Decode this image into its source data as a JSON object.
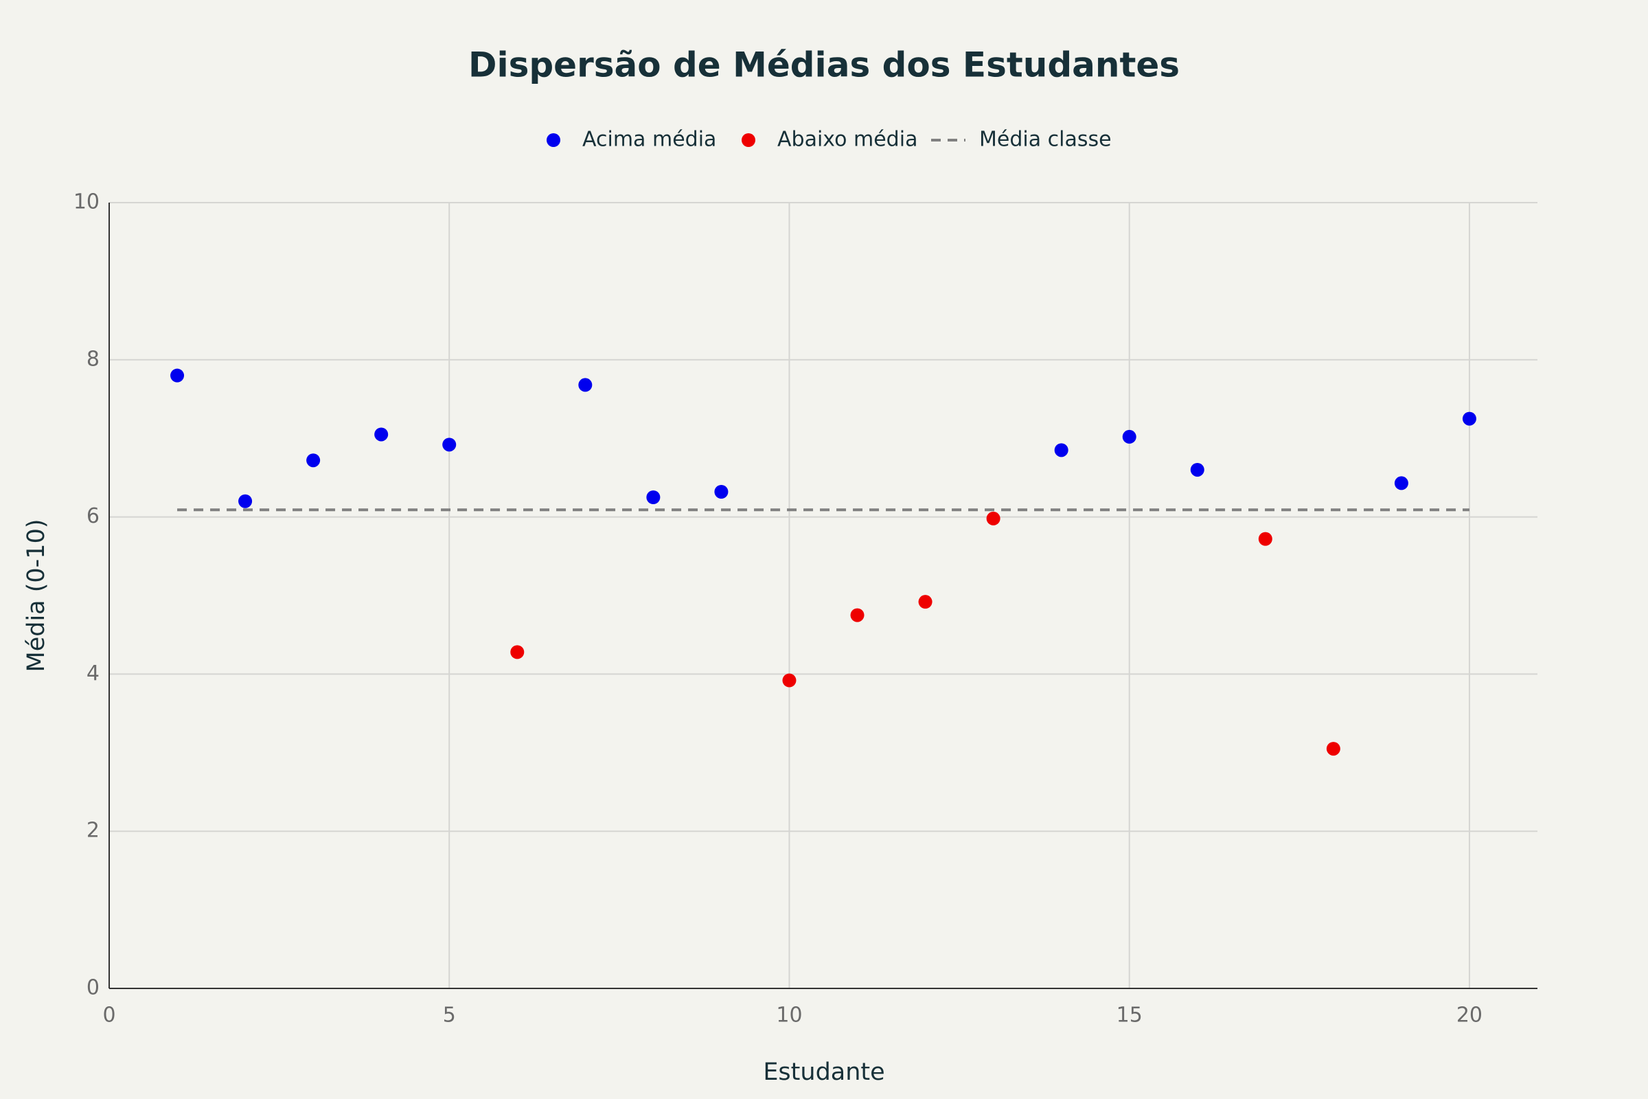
{
  "chart_data": {
    "type": "scatter",
    "title": "Dispersão de Médias dos Estudantes",
    "xlabel": "Estudante",
    "ylabel": "Média (0-10)",
    "series": [
      {
        "name": "Acima média",
        "color": "#0000ee",
        "mode": "markers",
        "x": [
          1,
          2,
          3,
          4,
          5,
          7,
          8,
          9,
          14,
          15,
          16,
          19,
          20
        ],
        "values": [
          7.8,
          6.2,
          6.72,
          7.05,
          6.92,
          7.68,
          6.25,
          6.32,
          6.85,
          7.02,
          6.6,
          6.43,
          7.25
        ]
      },
      {
        "name": "Abaixo média",
        "color": "#ee0000",
        "mode": "markers",
        "x": [
          6,
          10,
          11,
          12,
          13,
          17,
          18
        ],
        "values": [
          4.28,
          3.92,
          4.75,
          4.92,
          5.98,
          5.72,
          3.05
        ]
      },
      {
        "name": "Média classe",
        "color": "#808080",
        "mode": "lines",
        "dash": "dash",
        "x": [
          1,
          20
        ],
        "values": [
          6.09,
          6.09
        ]
      }
    ],
    "xlim": [
      0,
      21
    ],
    "xticks": [
      0,
      5,
      10,
      15,
      20
    ],
    "ylim": [
      0,
      10
    ],
    "yticks": [
      0,
      2,
      4,
      6,
      8,
      10
    ],
    "grid": true,
    "legend": "top"
  }
}
